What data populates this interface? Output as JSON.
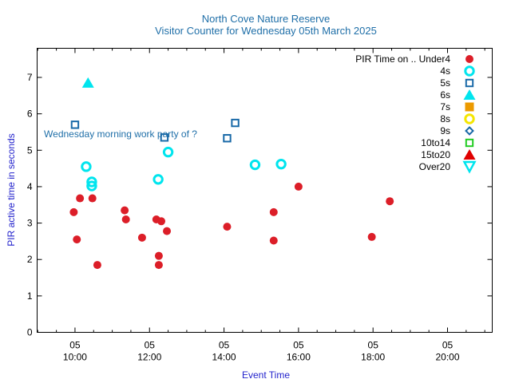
{
  "chart_data": {
    "type": "scatter",
    "title": "North Cove Nature Reserve",
    "subtitle": "Visitor Counter for Wednesday 05th March 2025",
    "xlabel": "Event Time",
    "ylabel": "PIR active time in seconds",
    "xlim": [
      "08:59",
      "21:12"
    ],
    "ylim": [
      0,
      7.8
    ],
    "xticks": [
      {
        "t": "10:00",
        "label": "05\n10:00"
      },
      {
        "t": "12:00",
        "label": "05\n12:00"
      },
      {
        "t": "14:00",
        "label": "05\n14:00"
      },
      {
        "t": "16:00",
        "label": "05\n16:00"
      },
      {
        "t": "18:00",
        "label": "05\n18:00"
      },
      {
        "t": "20:00",
        "label": "05\n20:00"
      }
    ],
    "yticks": [
      0,
      1,
      2,
      3,
      4,
      5,
      6,
      7
    ],
    "grid": false,
    "legend_title": "PIR Time on .. ",
    "legend_position": "top-right",
    "annotation": {
      "text": "Wednesday morning work party of ?",
      "t": "09:10",
      "y": 5.45
    },
    "series": [
      {
        "name": "Under4",
        "marker": "circle-filled",
        "color": "#dc1e28",
        "points": [
          {
            "t": "09:58",
            "y": 3.3
          },
          {
            "t": "10:03",
            "y": 2.55
          },
          {
            "t": "10:08",
            "y": 3.68
          },
          {
            "t": "10:28",
            "y": 3.68
          },
          {
            "t": "10:36",
            "y": 1.85
          },
          {
            "t": "11:20",
            "y": 3.35
          },
          {
            "t": "11:22",
            "y": 3.1
          },
          {
            "t": "11:48",
            "y": 2.6
          },
          {
            "t": "12:11",
            "y": 3.1
          },
          {
            "t": "12:15",
            "y": 2.1
          },
          {
            "t": "12:15",
            "y": 1.85
          },
          {
            "t": "12:19",
            "y": 3.05
          },
          {
            "t": "12:28",
            "y": 2.78
          },
          {
            "t": "14:05",
            "y": 2.9
          },
          {
            "t": "15:20",
            "y": 3.3
          },
          {
            "t": "15:20",
            "y": 2.52
          },
          {
            "t": "16:00",
            "y": 4.0
          },
          {
            "t": "17:58",
            "y": 2.62
          },
          {
            "t": "18:27",
            "y": 3.6
          }
        ]
      },
      {
        "name": "4s",
        "marker": "circle-open",
        "color": "#00e5ee",
        "points": [
          {
            "t": "10:18",
            "y": 4.55
          },
          {
            "t": "10:27",
            "y": 4.13
          },
          {
            "t": "10:27",
            "y": 4.02
          },
          {
            "t": "12:14",
            "y": 4.2
          },
          {
            "t": "12:30",
            "y": 4.95
          },
          {
            "t": "14:50",
            "y": 4.6
          },
          {
            "t": "15:32",
            "y": 4.62
          }
        ]
      },
      {
        "name": "5s",
        "marker": "square-open",
        "color": "#1a6aa8",
        "points": [
          {
            "t": "10:00",
            "y": 5.7
          },
          {
            "t": "12:24",
            "y": 5.35
          },
          {
            "t": "14:05",
            "y": 5.33
          },
          {
            "t": "14:18",
            "y": 5.75
          }
        ]
      },
      {
        "name": "6s",
        "marker": "triangle-filled",
        "color": "#00e5ee",
        "points": [
          {
            "t": "10:21",
            "y": 6.85
          }
        ]
      },
      {
        "name": "7s",
        "marker": "square-filled",
        "color": "#ec9a00",
        "points": []
      },
      {
        "name": "8s",
        "marker": "circle-open",
        "color": "#f5e600",
        "points": []
      },
      {
        "name": "9s",
        "marker": "diamond-open",
        "color": "#1a6aa8",
        "points": []
      },
      {
        "name": "10to14",
        "marker": "square-open",
        "color": "#22cc22",
        "points": []
      },
      {
        "name": "15to20",
        "marker": "triangle-filled",
        "color": "#e00000",
        "points": []
      },
      {
        "name": "Over20",
        "marker": "triangle-down-open",
        "color": "#00e5ee",
        "points": []
      }
    ]
  }
}
